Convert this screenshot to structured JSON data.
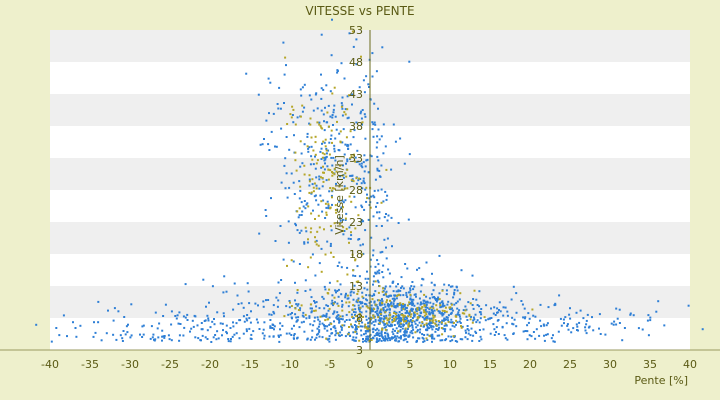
{
  "chart_data": {
    "type": "scatter",
    "title": "VITESSE vs PENTE",
    "xlabel": "Pente [%]",
    "ylabel": "Vitesse [km/h]",
    "xlim": [
      -40,
      40
    ],
    "ylim": [
      3,
      53
    ],
    "xticks": [
      -40,
      -35,
      -30,
      -25,
      -20,
      -15,
      -10,
      -5,
      0,
      5,
      10,
      15,
      20,
      25,
      30,
      35,
      40
    ],
    "yticks": [
      3,
      8,
      13,
      18,
      23,
      28,
      33,
      38,
      43,
      48,
      53
    ],
    "grid": "alternating horizontal bands",
    "colors": {
      "primary": "#2e7fd6",
      "secondary": "#b5a628",
      "axis": "#6b6b1e",
      "band": "#efefef"
    },
    "series": [
      {
        "color": "#2e7fd6",
        "clusters": [
          {
            "x": 3.5,
            "y": 8.5,
            "sx": 4.5,
            "sy": 3.0,
            "n": 700
          },
          {
            "x": -5,
            "y": 31,
            "sx": 4.0,
            "sy": 9.0,
            "n": 380
          },
          {
            "x": -6,
            "y": 8.0,
            "sx": 10,
            "sy": 2.4,
            "n": 320
          },
          {
            "x": 18,
            "y": 7.0,
            "sx": 9,
            "sy": 1.8,
            "n": 200
          },
          {
            "x": -24,
            "y": 6.0,
            "sx": 8,
            "sy": 1.8,
            "n": 120
          },
          {
            "x": 0.6,
            "y": 22,
            "sx": 0.9,
            "sy": 14,
            "n": 90
          }
        ]
      },
      {
        "color": "#b5a628",
        "clusters": [
          {
            "x": -5,
            "y": 29,
            "sx": 2.8,
            "sy": 8,
            "n": 170
          },
          {
            "x": 5,
            "y": 8.2,
            "sx": 4.0,
            "sy": 1.4,
            "n": 150
          },
          {
            "x": -2,
            "y": 10,
            "sx": 4.0,
            "sy": 3.5,
            "n": 60
          }
        ]
      }
    ]
  }
}
